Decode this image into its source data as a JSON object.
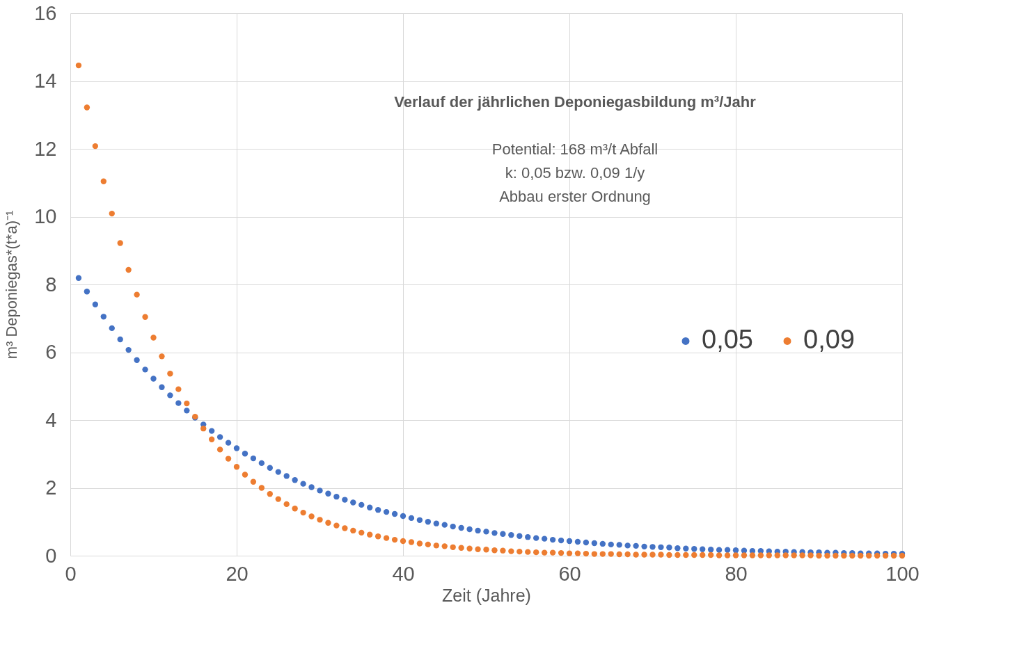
{
  "chart_data": {
    "type": "scatter",
    "title": "Verlauf der jährlichen Deponiegasbildung m³/Jahr",
    "annotations": [
      "Potential: 168 m³/t Abfall",
      "k: 0,05 bzw. 0,09 1/y",
      "Abbau erster Ordnung"
    ],
    "xlabel": "Zeit (Jahre)",
    "ylabel": "m³ Deponiegas*(t*a)⁻¹",
    "x": [
      1,
      2,
      3,
      4,
      5,
      6,
      7,
      8,
      9,
      10,
      11,
      12,
      13,
      14,
      15,
      16,
      17,
      18,
      19,
      20,
      21,
      22,
      23,
      24,
      25,
      26,
      27,
      28,
      29,
      30,
      31,
      32,
      33,
      34,
      35,
      36,
      37,
      38,
      39,
      40,
      41,
      42,
      43,
      44,
      45,
      46,
      47,
      48,
      49,
      50,
      51,
      52,
      53,
      54,
      55,
      56,
      57,
      58,
      59,
      60,
      61,
      62,
      63,
      64,
      65,
      66,
      67,
      68,
      69,
      70,
      71,
      72,
      73,
      74,
      75,
      76,
      77,
      78,
      79,
      80,
      81,
      82,
      83,
      84,
      85,
      86,
      87,
      88,
      89,
      90,
      91,
      92,
      93,
      94,
      95,
      96,
      97,
      98,
      99,
      100
    ],
    "series": [
      {
        "name": "0,05",
        "color": "#4472c4",
        "values": [
          8.19,
          7.79,
          7.41,
          7.05,
          6.71,
          6.38,
          6.07,
          5.77,
          5.49,
          5.22,
          4.97,
          4.73,
          4.5,
          4.28,
          4.07,
          3.87,
          3.68,
          3.5,
          3.33,
          3.17,
          3.01,
          2.87,
          2.73,
          2.59,
          2.47,
          2.35,
          2.23,
          2.12,
          2.02,
          1.92,
          1.83,
          1.74,
          1.65,
          1.57,
          1.5,
          1.42,
          1.35,
          1.29,
          1.23,
          1.17,
          1.11,
          1.05,
          1.0,
          0.95,
          0.91,
          0.86,
          0.82,
          0.78,
          0.74,
          0.71,
          0.67,
          0.64,
          0.61,
          0.58,
          0.55,
          0.52,
          0.5,
          0.47,
          0.45,
          0.43,
          0.41,
          0.39,
          0.37,
          0.35,
          0.33,
          0.32,
          0.3,
          0.29,
          0.27,
          0.26,
          0.25,
          0.24,
          0.22,
          0.21,
          0.2,
          0.19,
          0.18,
          0.17,
          0.17,
          0.16,
          0.15,
          0.14,
          0.14,
          0.13,
          0.12,
          0.12,
          0.11,
          0.11,
          0.1,
          0.1,
          0.09,
          0.09,
          0.08,
          0.08,
          0.07,
          0.07,
          0.07,
          0.06,
          0.06,
          0.06
        ]
      },
      {
        "name": "0,09",
        "color": "#ed7d31",
        "values": [
          14.46,
          13.22,
          12.08,
          11.04,
          10.09,
          9.22,
          8.43,
          7.7,
          7.04,
          6.43,
          5.88,
          5.37,
          4.91,
          4.49,
          4.1,
          3.75,
          3.43,
          3.13,
          2.86,
          2.62,
          2.39,
          2.18,
          2.0,
          1.82,
          1.67,
          1.52,
          1.39,
          1.27,
          1.16,
          1.06,
          0.97,
          0.89,
          0.81,
          0.74,
          0.68,
          0.62,
          0.57,
          0.52,
          0.47,
          0.43,
          0.4,
          0.36,
          0.33,
          0.3,
          0.28,
          0.25,
          0.23,
          0.21,
          0.19,
          0.18,
          0.16,
          0.15,
          0.13,
          0.12,
          0.11,
          0.1,
          0.09,
          0.09,
          0.08,
          0.07,
          0.07,
          0.06,
          0.05,
          0.05,
          0.05,
          0.04,
          0.04,
          0.03,
          0.03,
          0.03,
          0.03,
          0.02,
          0.02,
          0.02,
          0.02,
          0.02,
          0.02,
          0.01,
          0.01,
          0.01,
          0.01,
          0.01,
          0.01,
          0.01,
          0.01,
          0.01,
          0.01,
          0.01,
          0.01,
          0.0,
          0.0,
          0.0,
          0.0,
          0.0,
          0.0,
          0.0,
          0.0,
          0.0,
          0.0,
          0.0
        ]
      }
    ],
    "xlim": [
      0,
      100
    ],
    "xticks": [
      0,
      20,
      40,
      60,
      80,
      100
    ],
    "ylim": [
      0,
      16
    ],
    "yticks": [
      0,
      2,
      4,
      6,
      8,
      10,
      12,
      14,
      16
    ],
    "grid": true,
    "legend": "right",
    "marker": "circle"
  }
}
